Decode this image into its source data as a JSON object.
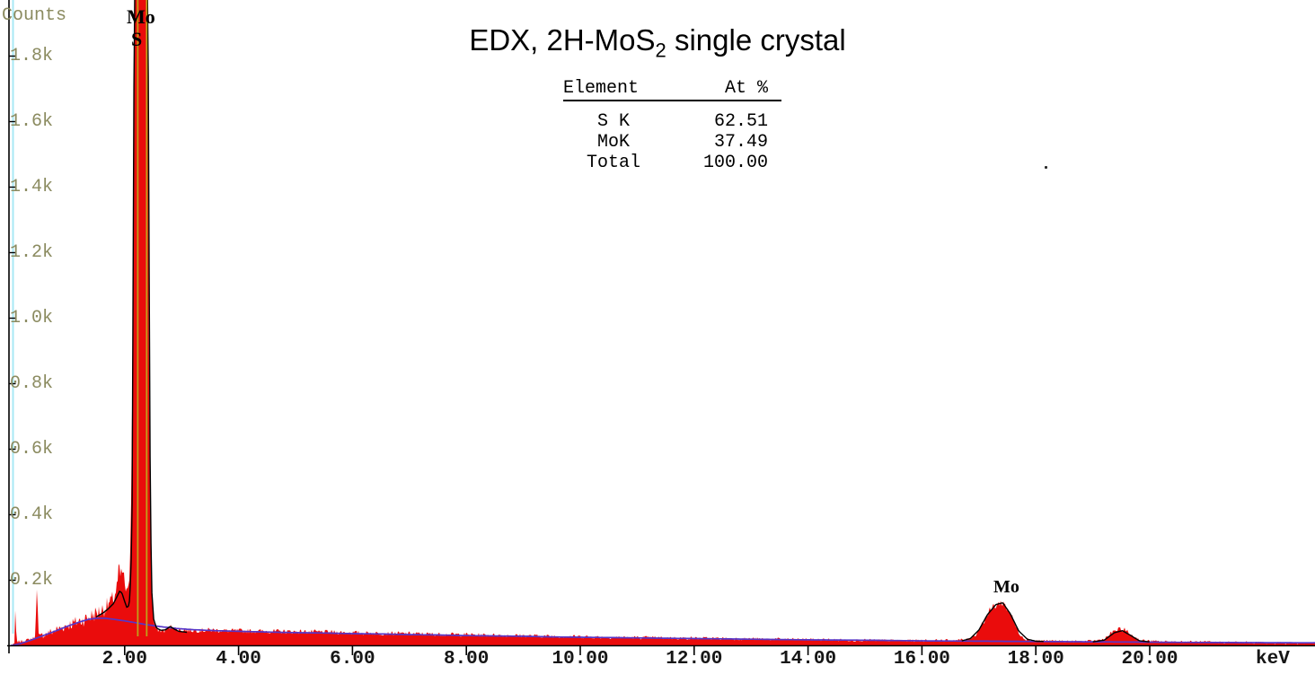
{
  "title": {
    "prefix": "EDX, 2H-MoS",
    "subscript": "2",
    "suffix": " single crystal"
  },
  "counts_label": "Counts",
  "kev_label": "keV",
  "table": {
    "headers": {
      "element": "Element",
      "at_pct": "At %"
    },
    "rows": [
      {
        "element": "S K",
        "at_pct": "62.51"
      },
      {
        "element": "MoK",
        "at_pct": "37.49"
      },
      {
        "element": "Total",
        "at_pct": "100.00"
      }
    ]
  },
  "peaks": [
    {
      "label": "Mo",
      "kev": 2.29
    },
    {
      "label": "S",
      "kev": 2.31
    },
    {
      "label": "Mo",
      "kev": 17.44
    }
  ],
  "colors": {
    "spectrum_fill": "#ea0c0c",
    "background_line": "#5636c8",
    "fit_line": "#000000",
    "marker_line": "#c0a018",
    "guide_line": "#a8e9f5",
    "axis": "#000000",
    "y_tick_text": "#8b8b60",
    "x_tick_text": "#161616"
  },
  "chart_data": {
    "type": "area",
    "title": "EDX, 2H-MoS2 single crystal",
    "xlabel": "keV",
    "ylabel": "Counts",
    "xlim": [
      0,
      22.85
    ],
    "ylim": [
      0,
      1900
    ],
    "grid": false,
    "legend": false,
    "x_ticks": [
      {
        "value": 2,
        "label": "2.00"
      },
      {
        "value": 4,
        "label": "4.00"
      },
      {
        "value": 6,
        "label": "6.00"
      },
      {
        "value": 8,
        "label": "8.00"
      },
      {
        "value": 10,
        "label": "10.00"
      },
      {
        "value": 12,
        "label": "12.00"
      },
      {
        "value": 14,
        "label": "14.00"
      },
      {
        "value": 16,
        "label": "16.00"
      },
      {
        "value": 18,
        "label": "18.00"
      },
      {
        "value": 20,
        "label": "20.00"
      }
    ],
    "y_ticks": [
      {
        "value": 1800,
        "label": "1.8k"
      },
      {
        "value": 1600,
        "label": "1.6k"
      },
      {
        "value": 1400,
        "label": "1.4k"
      },
      {
        "value": 1200,
        "label": "1.2k"
      },
      {
        "value": 1000,
        "label": "1.0k"
      },
      {
        "value": 800,
        "label": "0.8k"
      },
      {
        "value": 600,
        "label": "0.6k"
      },
      {
        "value": 400,
        "label": "0.4k"
      },
      {
        "value": 200,
        "label": "0.2k"
      }
    ],
    "marker_lines": {
      "x_values": [
        2.23,
        2.387
      ]
    },
    "series": [
      {
        "name": "spectrum",
        "style": "filled-noisy",
        "points": [
          [
            0.02,
            2
          ],
          [
            0.05,
            4
          ],
          [
            0.065,
            6
          ],
          [
            0.08,
            115
          ],
          [
            0.1,
            12
          ],
          [
            0.15,
            13
          ],
          [
            0.22,
            15
          ],
          [
            0.3,
            18
          ],
          [
            0.38,
            22
          ],
          [
            0.43,
            26
          ],
          [
            0.455,
            195
          ],
          [
            0.49,
            30
          ],
          [
            0.55,
            33
          ],
          [
            0.65,
            38
          ],
          [
            0.75,
            45
          ],
          [
            0.85,
            52
          ],
          [
            0.95,
            60
          ],
          [
            1.05,
            66
          ],
          [
            1.15,
            72
          ],
          [
            1.25,
            78
          ],
          [
            1.35,
            85
          ],
          [
            1.45,
            95
          ],
          [
            1.55,
            103
          ],
          [
            1.65,
            115
          ],
          [
            1.75,
            132
          ],
          [
            1.82,
            150
          ],
          [
            1.87,
            185
          ],
          [
            1.9,
            240
          ],
          [
            1.93,
            205
          ],
          [
            1.96,
            232
          ],
          [
            2.0,
            190
          ],
          [
            2.03,
            165
          ],
          [
            2.06,
            150
          ],
          [
            2.09,
            230
          ],
          [
            2.12,
            500
          ],
          [
            2.15,
            1200
          ],
          [
            2.18,
            2400
          ],
          [
            2.21,
            2700
          ],
          [
            2.38,
            2700
          ],
          [
            2.41,
            1700
          ],
          [
            2.43,
            800
          ],
          [
            2.455,
            350
          ],
          [
            2.48,
            140
          ],
          [
            2.51,
            70
          ],
          [
            2.55,
            52
          ],
          [
            2.62,
            46
          ],
          [
            2.7,
            46
          ],
          [
            2.78,
            54
          ],
          [
            2.84,
            62
          ],
          [
            2.9,
            50
          ],
          [
            3.0,
            48
          ],
          [
            3.2,
            47
          ],
          [
            3.5,
            48
          ],
          [
            3.8,
            46
          ],
          [
            4.2,
            45
          ],
          [
            4.6,
            44
          ],
          [
            5.0,
            43
          ],
          [
            5.5,
            42
          ],
          [
            6.0,
            40
          ],
          [
            6.5,
            38
          ],
          [
            7.0,
            37
          ],
          [
            7.5,
            35
          ],
          [
            8.0,
            34
          ],
          [
            8.5,
            32
          ],
          [
            9.0,
            31
          ],
          [
            9.5,
            29
          ],
          [
            10.0,
            28
          ],
          [
            10.5,
            26
          ],
          [
            11.0,
            25
          ],
          [
            11.5,
            24
          ],
          [
            12.0,
            23
          ],
          [
            12.5,
            22
          ],
          [
            13.0,
            21
          ],
          [
            13.5,
            20
          ],
          [
            14.0,
            19
          ],
          [
            14.5,
            18
          ],
          [
            15.0,
            17
          ],
          [
            15.5,
            16
          ],
          [
            16.0,
            16
          ],
          [
            16.5,
            16
          ],
          [
            16.8,
            19
          ],
          [
            16.95,
            35
          ],
          [
            17.1,
            80
          ],
          [
            17.25,
            120
          ],
          [
            17.42,
            133
          ],
          [
            17.55,
            100
          ],
          [
            17.68,
            45
          ],
          [
            17.8,
            22
          ],
          [
            17.95,
            16
          ],
          [
            18.3,
            14
          ],
          [
            18.7,
            13
          ],
          [
            19.0,
            14
          ],
          [
            19.2,
            20
          ],
          [
            19.4,
            48
          ],
          [
            19.55,
            50
          ],
          [
            19.7,
            30
          ],
          [
            19.85,
            16
          ],
          [
            20.1,
            13
          ],
          [
            20.5,
            12
          ],
          [
            21.0,
            11
          ],
          [
            21.6,
            10
          ],
          [
            22.2,
            9
          ],
          [
            22.85,
            9
          ]
        ]
      },
      {
        "name": "background",
        "style": "line",
        "points": [
          [
            0.03,
            1
          ],
          [
            0.2,
            8
          ],
          [
            0.4,
            20
          ],
          [
            0.6,
            33
          ],
          [
            0.8,
            46
          ],
          [
            1.0,
            60
          ],
          [
            1.2,
            72
          ],
          [
            1.35,
            80
          ],
          [
            1.5,
            84
          ],
          [
            1.65,
            84
          ],
          [
            1.8,
            81
          ],
          [
            2.0,
            76
          ],
          [
            2.2,
            70
          ],
          [
            2.4,
            64
          ],
          [
            2.6,
            59
          ],
          [
            2.9,
            53
          ],
          [
            3.2,
            49
          ],
          [
            3.6,
            46
          ],
          [
            4.0,
            44
          ],
          [
            4.5,
            42
          ],
          [
            5.0,
            40
          ],
          [
            5.5,
            39
          ],
          [
            6.0,
            37
          ],
          [
            6.5,
            36
          ],
          [
            7.0,
            34
          ],
          [
            7.5,
            33
          ],
          [
            8.0,
            31
          ],
          [
            8.5,
            30
          ],
          [
            9.0,
            29
          ],
          [
            9.5,
            27
          ],
          [
            10.0,
            26
          ],
          [
            11.0,
            24
          ],
          [
            12.0,
            22
          ],
          [
            13.0,
            20
          ],
          [
            14.0,
            18
          ],
          [
            15.0,
            17
          ],
          [
            16.0,
            15
          ],
          [
            17.0,
            14
          ],
          [
            18.0,
            13
          ],
          [
            19.0,
            12
          ],
          [
            20.0,
            11
          ],
          [
            21.0,
            10
          ],
          [
            22.85,
            9
          ]
        ]
      },
      {
        "name": "fit",
        "style": "line-segments",
        "segments": [
          [
            [
              1.5,
              88
            ],
            [
              1.62,
              100
            ],
            [
              1.72,
              114
            ],
            [
              1.8,
              128
            ],
            [
              1.86,
              148
            ],
            [
              1.91,
              166
            ],
            [
              1.95,
              162
            ],
            [
              2.0,
              135
            ],
            [
              2.04,
              116
            ],
            [
              2.08,
              125
            ],
            [
              2.11,
              220
            ],
            [
              2.13,
              400
            ],
            [
              2.16,
              1600
            ],
            [
              2.19,
              2900
            ],
            [
              2.39,
              2900
            ],
            [
              2.42,
              1500
            ],
            [
              2.45,
              450
            ],
            [
              2.475,
              170
            ],
            [
              2.51,
              80
            ],
            [
              2.56,
              54
            ],
            [
              2.64,
              47
            ],
            [
              2.72,
              49
            ],
            [
              2.8,
              59
            ],
            [
              2.87,
              51
            ],
            [
              2.95,
              44
            ],
            [
              3.1,
              41
            ]
          ],
          [
            [
              16.7,
              15
            ],
            [
              16.85,
              22
            ],
            [
              17.0,
              48
            ],
            [
              17.15,
              95
            ],
            [
              17.3,
              126
            ],
            [
              17.42,
              131
            ],
            [
              17.55,
              98
            ],
            [
              17.7,
              45
            ],
            [
              17.85,
              20
            ],
            [
              18.0,
              14
            ],
            [
              18.15,
              13
            ]
          ],
          [
            [
              19.0,
              12
            ],
            [
              19.2,
              17
            ],
            [
              19.38,
              40
            ],
            [
              19.52,
              46
            ],
            [
              19.66,
              32
            ],
            [
              19.82,
              15
            ],
            [
              20.0,
              12
            ]
          ]
        ]
      }
    ]
  }
}
